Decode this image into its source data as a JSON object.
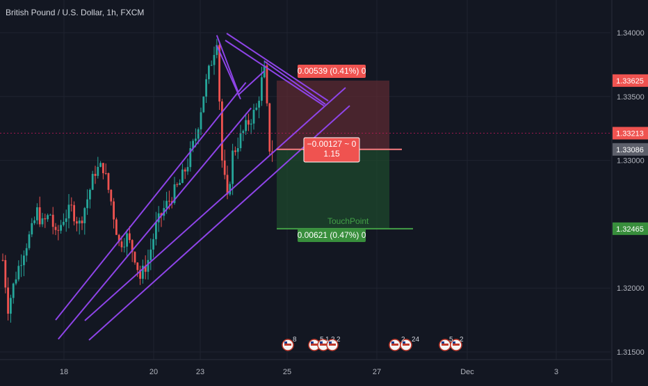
{
  "header": {
    "symbol_title": "British Pound / U.S. Dollar, 1h, FXCM"
  },
  "colors": {
    "background": "#131722",
    "grid": "#1f2330",
    "up": "#26a69a",
    "down": "#ef5350",
    "trendline": "#8e44e8",
    "target_zone": "#1e4b2c",
    "stop_zone": "#5b2a31",
    "crosshair": "#c2185b",
    "entry_line": "#f77c80"
  },
  "chart_data": {
    "type": "candlestick",
    "title": "British Pound / U.S. Dollar, 1h, FXCM",
    "ylim": [
      1.3142,
      1.3418
    ],
    "y_ticks": [
      "1.34000",
      "1.33500",
      "1.33000",
      "1.32000",
      "1.31500"
    ],
    "x_ticks": [
      "18",
      "20",
      "23",
      "25",
      "27",
      "Dec",
      "3"
    ],
    "grid": true,
    "price_labels": [
      {
        "value": 1.33625,
        "text": "1.33625",
        "role": "stop"
      },
      {
        "value": 1.33213,
        "text": "1.33213",
        "role": "crosshair"
      },
      {
        "value": 1.33086,
        "text": "1.33086",
        "role": "last"
      },
      {
        "value": 1.32465,
        "text": "1.32465",
        "role": "target"
      }
    ],
    "ohlc_anchors_note": "",
    "anchors": [
      {
        "i": 0,
        "p": 1.3222
      },
      {
        "i": 2,
        "p": 1.3185
      },
      {
        "i": 5,
        "p": 1.321
      },
      {
        "i": 8,
        "p": 1.323
      },
      {
        "i": 11,
        "p": 1.3245
      },
      {
        "i": 13,
        "p": 1.326
      },
      {
        "i": 15,
        "p": 1.325
      },
      {
        "i": 18,
        "p": 1.3258
      },
      {
        "i": 20,
        "p": 1.324
      },
      {
        "i": 23,
        "p": 1.3255
      },
      {
        "i": 26,
        "p": 1.3262
      },
      {
        "i": 29,
        "p": 1.325
      },
      {
        "i": 32,
        "p": 1.327
      },
      {
        "i": 35,
        "p": 1.3292
      },
      {
        "i": 38,
        "p": 1.3295
      },
      {
        "i": 41,
        "p": 1.3268
      },
      {
        "i": 44,
        "p": 1.3235
      },
      {
        "i": 47,
        "p": 1.324
      },
      {
        "i": 50,
        "p": 1.3225
      },
      {
        "i": 52,
        "p": 1.3208
      },
      {
        "i": 55,
        "p": 1.3222
      },
      {
        "i": 58,
        "p": 1.3248
      },
      {
        "i": 61,
        "p": 1.3262
      },
      {
        "i": 64,
        "p": 1.3272
      },
      {
        "i": 67,
        "p": 1.3282
      },
      {
        "i": 70,
        "p": 1.3298
      },
      {
        "i": 73,
        "p": 1.3318
      },
      {
        "i": 76,
        "p": 1.3352
      },
      {
        "i": 79,
        "p": 1.3378
      },
      {
        "i": 81,
        "p": 1.3396
      },
      {
        "i": 83,
        "p": 1.33
      },
      {
        "i": 85,
        "p": 1.3268
      },
      {
        "i": 87,
        "p": 1.3305
      },
      {
        "i": 90,
        "p": 1.3318
      },
      {
        "i": 93,
        "p": 1.333
      },
      {
        "i": 96,
        "p": 1.334
      },
      {
        "i": 98,
        "p": 1.3362
      },
      {
        "i": 99,
        "p": 1.337
      },
      {
        "i": 100,
        "p": 1.334
      },
      {
        "i": 101,
        "p": 1.331
      },
      {
        "i": 102,
        "p": 1.3308
      }
    ],
    "trendlines": [
      {
        "from": {
          "i": 20,
          "p": 1.3175
        },
        "to": {
          "i": 92,
          "p": 1.3361
        }
      },
      {
        "from": {
          "i": 21,
          "p": 1.316
        },
        "to": {
          "i": 94,
          "p": 1.3341
        }
      },
      {
        "from": {
          "i": 81,
          "p": 1.3398
        },
        "to": {
          "i": 89,
          "p": 1.3354
        }
      },
      {
        "from": {
          "i": 81,
          "p": 1.339
        },
        "to": {
          "i": 90,
          "p": 1.3348
        }
      },
      {
        "from": {
          "i": 99,
          "p": 1.337
        },
        "to": {
          "i": 89,
          "p": 1.3351
        }
      }
    ],
    "position": {
      "entry": 1.33086,
      "stop": 1.33625,
      "target": 1.32465,
      "stop_label": "0.00539 (0.41%) 0",
      "target_label": "0.00621 (0.47%) 0",
      "current_label_line1": "−0.00127 ~ 0",
      "current_label_line2": "1.15",
      "target_note": "TouchPoint"
    },
    "events": [
      {
        "label": "8"
      },
      {
        "label": "5"
      },
      {
        "label": "2"
      },
      {
        "label": "2"
      },
      {
        "label": "24"
      },
      {
        "label": "5"
      },
      {
        "label": "2"
      }
    ]
  }
}
